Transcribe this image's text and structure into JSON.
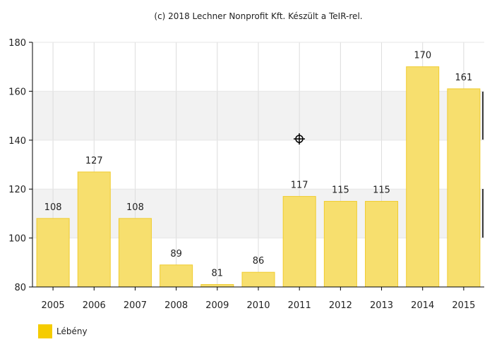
{
  "chart_data": {
    "type": "bar",
    "title": "(c) 2018 Lechner Nonprofit Kft. Készült a TeIR-rel.",
    "xlabel": "",
    "ylabel": "",
    "ylim": [
      80,
      180
    ],
    "yticks": [
      80,
      100,
      120,
      140,
      160,
      180
    ],
    "categories": [
      "2005",
      "2006",
      "2007",
      "2008",
      "2009",
      "2010",
      "2011",
      "2012",
      "2013",
      "2014",
      "2015"
    ],
    "series": [
      {
        "name": "Lébény",
        "values": [
          108,
          127,
          108,
          89,
          81,
          86,
          117,
          115,
          115,
          170,
          161
        ],
        "color": "#f7df6e"
      }
    ],
    "bar_stroke": "#f0cc2e",
    "legend_swatch_color": "#f5cc00",
    "legend": "bottom-left",
    "grid": true
  }
}
